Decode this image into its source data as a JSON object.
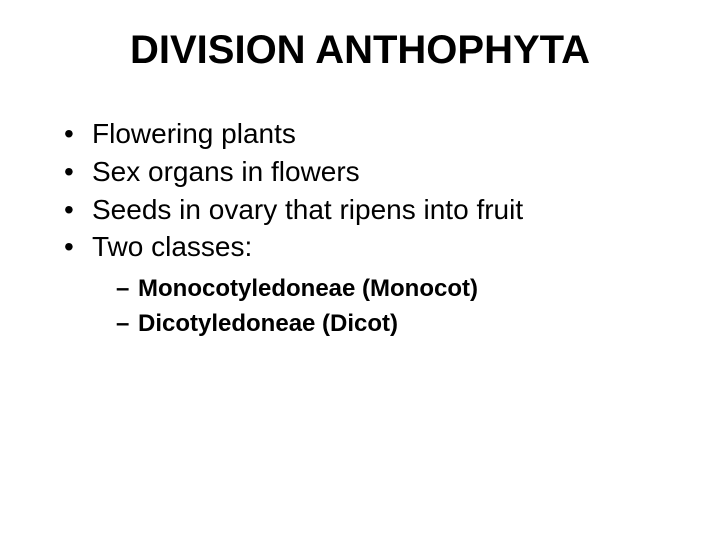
{
  "title": "DIVISION ANTHOPHYTA",
  "bullets": [
    "Flowering plants",
    "Sex organs in flowers",
    "Seeds in ovary that ripens into fruit",
    "Two classes:"
  ],
  "subitems": [
    "Monocotyledoneae (Monocot)",
    "Dicotyledoneae (Dicot)"
  ],
  "styling": {
    "background_color": "#ffffff",
    "text_color": "#000000",
    "title_fontsize": 40,
    "title_fontweight": "bold",
    "bullet_fontsize": 28,
    "bullet_fontweight": "normal",
    "subitem_fontsize": 24,
    "subitem_fontweight": "bold",
    "font_family": "Arial",
    "bullet_marker": "•",
    "sub_marker": "–"
  }
}
